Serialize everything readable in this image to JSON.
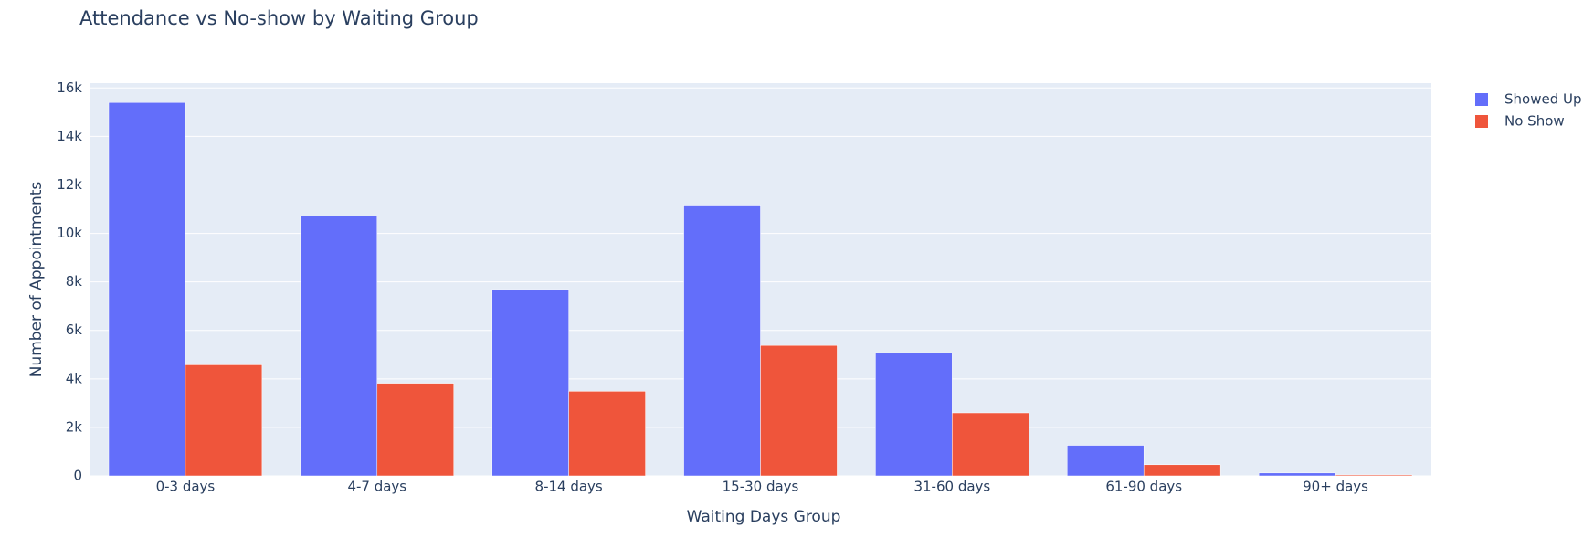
{
  "chart_data": {
    "type": "bar",
    "title": "Attendance vs No-show by Waiting Group",
    "x_label": "Waiting Days Group",
    "y_label": "Number of Appointments",
    "categories": [
      "0-3 days",
      "4-7 days",
      "8-14 days",
      "15-30 days",
      "31-60 days",
      "61-90 days",
      "90+ days"
    ],
    "series": [
      {
        "name": "Showed Up",
        "color": "#636efa",
        "values": [
          15400,
          10710,
          7690,
          11170,
          5080,
          1260,
          120
        ]
      },
      {
        "name": "No Show",
        "color": "#ef553b",
        "values": [
          4580,
          3820,
          3490,
          5380,
          2600,
          460,
          40
        ]
      }
    ],
    "ylim": [
      0,
      16200
    ],
    "yticks": [
      0,
      {
        "value": 2000,
        "label": "2k"
      },
      {
        "value": 4000,
        "label": "4k"
      },
      {
        "value": 6000,
        "label": "6k"
      },
      {
        "value": 8000,
        "label": "8k"
      },
      {
        "value": 10000,
        "label": "10k"
      },
      {
        "value": 12000,
        "label": "12k"
      },
      {
        "value": 14000,
        "label": "14k"
      },
      {
        "value": 16000,
        "label": "16k"
      }
    ],
    "grid": true,
    "legend": "top-right"
  }
}
